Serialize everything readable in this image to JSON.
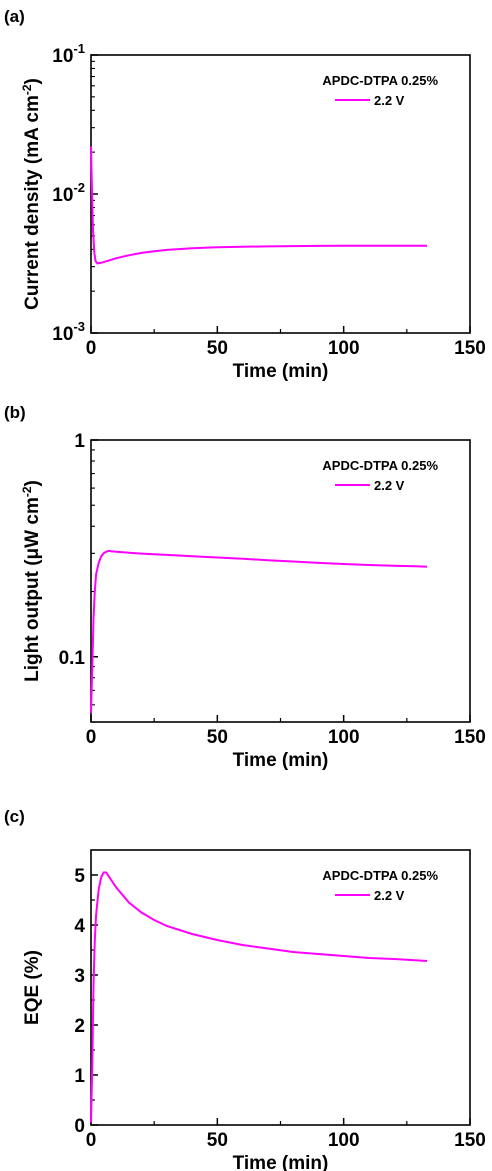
{
  "chart_data": [
    {
      "panel_label": "(a)",
      "type": "line",
      "xlabel": "Time (min)",
      "ylabel": "Current density (mA cm",
      "ylabel_sup": "-2",
      "ylabel_close": ")",
      "yscale": "log",
      "xlim": [
        0,
        150
      ],
      "ylim": [
        0.001,
        0.1
      ],
      "xticks": [
        0,
        50,
        100,
        150
      ],
      "yticks": [
        {
          "value": 0.001,
          "base": "10",
          "exp": "-3"
        },
        {
          "value": 0.01,
          "base": "10",
          "exp": "-2"
        },
        {
          "value": 0.1,
          "base": "10",
          "exp": "-1"
        }
      ],
      "legend": {
        "title": "APDC-DTPA 0.25%",
        "placement": "top-right"
      },
      "series": [
        {
          "name": "2.2 V",
          "color": "#ff00ff",
          "x": [
            0,
            0.3,
            0.8,
            1.3,
            1.8,
            2.5,
            4,
            6,
            8,
            10,
            15,
            20,
            25,
            30,
            40,
            50,
            60,
            70,
            80,
            90,
            100,
            110,
            120,
            130,
            133
          ],
          "y": [
            0.022,
            0.012,
            0.0055,
            0.0038,
            0.0033,
            0.00317,
            0.0032,
            0.00328,
            0.00336,
            0.00345,
            0.00362,
            0.00377,
            0.00388,
            0.00396,
            0.00407,
            0.00414,
            0.00418,
            0.0042,
            0.00422,
            0.00423,
            0.00424,
            0.00424,
            0.00424,
            0.00425,
            0.00425
          ]
        }
      ]
    },
    {
      "panel_label": "(b)",
      "type": "line",
      "xlabel": "Time (min)",
      "ylabel": "Light output (μW cm",
      "ylabel_sup": "-2",
      "ylabel_close": ")",
      "yscale": "log",
      "xlim": [
        0,
        150
      ],
      "ylim": [
        0.05,
        1
      ],
      "xticks": [
        0,
        50,
        100,
        150
      ],
      "yticks": [
        {
          "value": 0.1,
          "label": "0.1"
        },
        {
          "value": 1,
          "label": "1"
        }
      ],
      "legend": {
        "title": "APDC-DTPA 0.25%",
        "placement": "top-right"
      },
      "series": [
        {
          "name": "2.2 V",
          "color": "#ff00ff",
          "x": [
            0,
            0.5,
            1,
            1.5,
            2,
            3,
            4,
            5,
            6,
            7,
            8,
            10,
            15,
            20,
            30,
            40,
            50,
            60,
            70,
            80,
            90,
            100,
            110,
            120,
            130,
            133
          ],
          "y": [
            0.055,
            0.09,
            0.15,
            0.2,
            0.24,
            0.27,
            0.29,
            0.3,
            0.305,
            0.308,
            0.307,
            0.305,
            0.302,
            0.299,
            0.295,
            0.291,
            0.287,
            0.283,
            0.279,
            0.275,
            0.271,
            0.268,
            0.265,
            0.263,
            0.261,
            0.26
          ]
        }
      ]
    },
    {
      "panel_label": "(c)",
      "type": "line",
      "xlabel": "Time (min)",
      "ylabel": "EQE (%)",
      "yscale": "linear",
      "xlim": [
        0,
        150
      ],
      "ylim": [
        0,
        5.5
      ],
      "xticks": [
        0,
        50,
        100,
        150
      ],
      "yticks": [
        {
          "value": 0,
          "label": "0"
        },
        {
          "value": 1,
          "label": "1"
        },
        {
          "value": 2,
          "label": "2"
        },
        {
          "value": 3,
          "label": "3"
        },
        {
          "value": 4,
          "label": "4"
        },
        {
          "value": 5,
          "label": "5"
        }
      ],
      "legend": {
        "title": "APDC-DTPA 0.25%",
        "placement": "top-right"
      },
      "series": [
        {
          "name": "2.2 V",
          "color": "#ff00ff",
          "x": [
            0,
            0.5,
            1,
            1.5,
            2,
            3,
            4,
            5,
            6,
            8,
            10,
            15,
            20,
            25,
            30,
            40,
            50,
            60,
            70,
            80,
            90,
            100,
            110,
            120,
            130,
            133
          ],
          "y": [
            0.05,
            1.2,
            2.8,
            3.7,
            4.2,
            4.7,
            4.95,
            5.05,
            5.05,
            4.9,
            4.75,
            4.45,
            4.25,
            4.1,
            3.98,
            3.82,
            3.7,
            3.6,
            3.53,
            3.46,
            3.42,
            3.38,
            3.34,
            3.32,
            3.29,
            3.28
          ]
        }
      ]
    }
  ]
}
